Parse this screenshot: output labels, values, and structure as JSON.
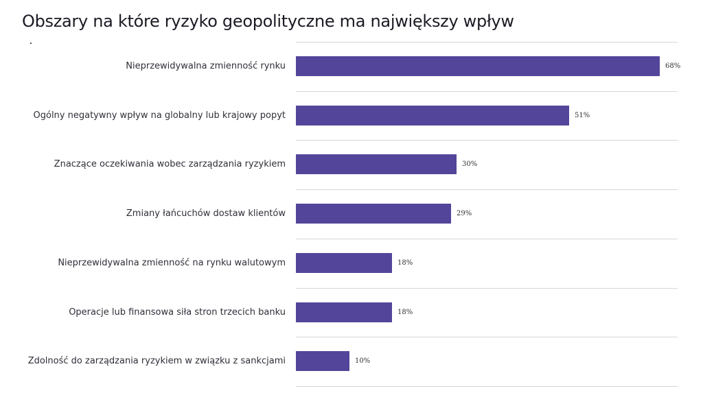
{
  "title": "Obszary na które ryzyko geopolityczne ma największy wpływ",
  "subtitle_mark": "·",
  "colors": {
    "bar": "#52459a",
    "gridline": "#d6d6d6",
    "text": "#2e2e38"
  },
  "chart_data": {
    "type": "bar",
    "orientation": "horizontal",
    "title": "Obszary na które ryzyko geopolityczne ma największy wpływ",
    "xlabel": "",
    "ylabel": "",
    "categories": [
      "Nieprzewidywalna zmienność rynku",
      "Ogólny negatywny wpływ na globalny lub krajowy popyt",
      "Znaczące oczekiwania wobec zarządzania ryzykiem",
      "Zmiany łańcuchów dostaw klientów",
      "Nieprzewidywalna zmienność na rynku walutowym",
      "Operacje lub finansowa siła stron trzecich banku",
      "Zdolność do zarządzania ryzykiem w związku z sankcjami"
    ],
    "values": [
      68,
      51,
      30,
      29,
      18,
      18,
      10
    ],
    "value_labels": [
      "68%",
      "51%",
      "30%",
      "29%",
      "18%",
      "18%",
      "10%"
    ],
    "unit": "%",
    "xlim": [
      0,
      70
    ],
    "grid": "horizontal separators between rows",
    "legend": "none"
  }
}
